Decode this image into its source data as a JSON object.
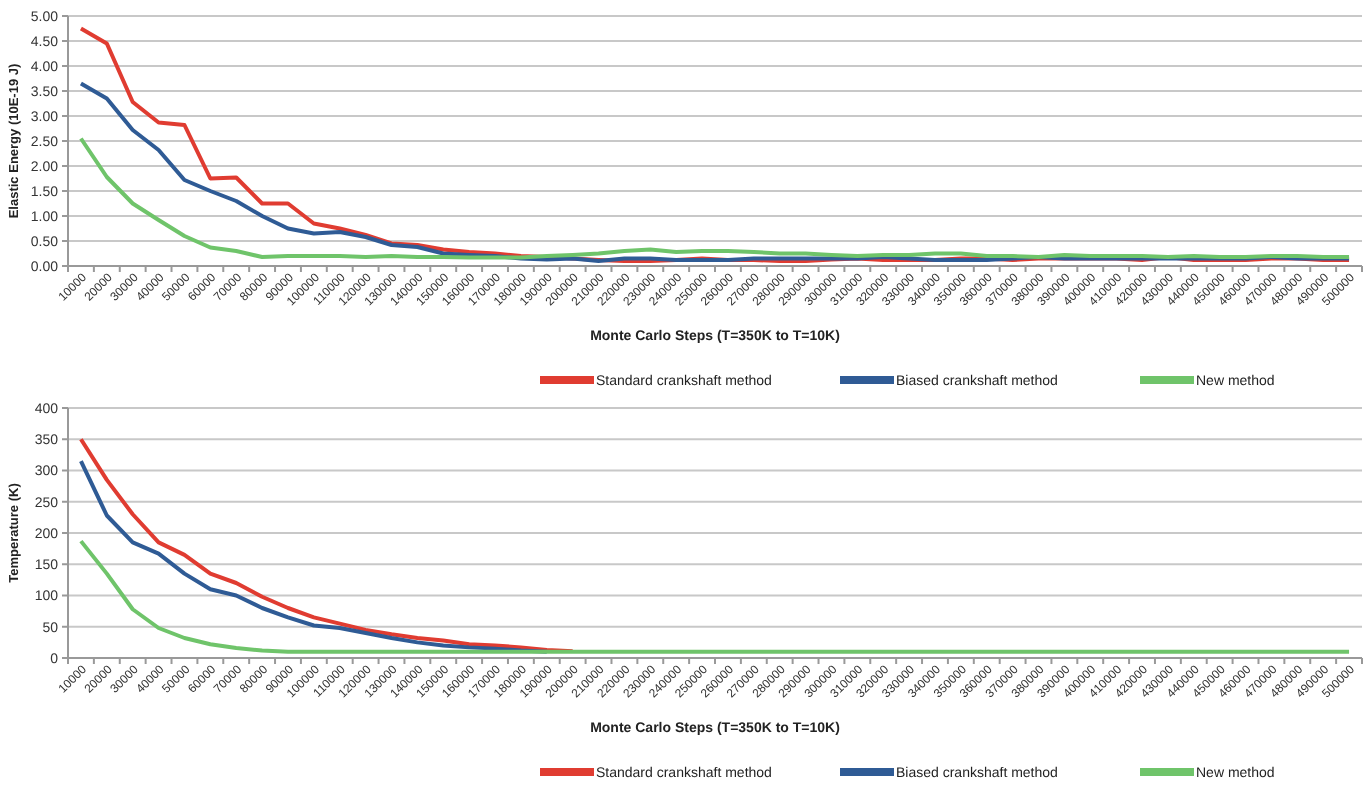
{
  "chart_data": [
    {
      "type": "line",
      "xlabel": "Monte Carlo Steps (T=350K to T=10K)",
      "ylabel": "Elastic Energy (10E-19 J)",
      "categories": [
        "10000",
        "20000",
        "30000",
        "40000",
        "50000",
        "60000",
        "70000",
        "80000",
        "90000",
        "100000",
        "110000",
        "120000",
        "130000",
        "140000",
        "150000",
        "160000",
        "170000",
        "180000",
        "190000",
        "200000",
        "210000",
        "220000",
        "230000",
        "240000",
        "250000",
        "260000",
        "270000",
        "280000",
        "290000",
        "300000",
        "310000",
        "320000",
        "330000",
        "340000",
        "350000",
        "360000",
        "370000",
        "380000",
        "390000",
        "400000",
        "410000",
        "420000",
        "430000",
        "440000",
        "450000",
        "460000",
        "470000",
        "480000",
        "490000",
        "500000"
      ],
      "ylim": [
        0,
        5
      ],
      "yticks": [
        {
          "value": 0,
          "label": "0.00"
        },
        {
          "value": 0.5,
          "label": "0.50"
        },
        {
          "value": 1,
          "label": "1.00"
        },
        {
          "value": 1.5,
          "label": "1.50"
        },
        {
          "value": 2,
          "label": "2.00"
        },
        {
          "value": 2.5,
          "label": "2.50"
        },
        {
          "value": 3,
          "label": "3.00"
        },
        {
          "value": 3.5,
          "label": "3.50"
        },
        {
          "value": 4,
          "label": "4.00"
        },
        {
          "value": 4.5,
          "label": "4.50"
        },
        {
          "value": 5,
          "label": "5.00"
        }
      ],
      "grid": "y",
      "legend": "bottom",
      "marker": "none",
      "line_style": "solid",
      "series": [
        {
          "name": "Standard crankshaft method",
          "color": "#e03c31",
          "values": [
            4.75,
            4.45,
            3.28,
            2.87,
            2.82,
            1.75,
            1.77,
            1.25,
            1.25,
            0.85,
            0.75,
            0.62,
            0.45,
            0.42,
            0.33,
            0.28,
            0.25,
            0.2,
            0.18,
            0.15,
            0.12,
            0.1,
            0.1,
            0.12,
            0.15,
            0.12,
            0.12,
            0.1,
            0.1,
            0.13,
            0.15,
            0.12,
            0.12,
            0.12,
            0.15,
            0.15,
            0.12,
            0.15,
            0.15,
            0.15,
            0.15,
            0.12,
            0.18,
            0.12,
            0.12,
            0.12,
            0.15,
            0.15,
            0.12,
            0.12
          ]
        },
        {
          "name": "Biased crankshaft method",
          "color": "#2f5b95",
          "values": [
            3.65,
            3.35,
            2.72,
            2.32,
            1.72,
            1.5,
            1.3,
            1.0,
            0.75,
            0.65,
            0.68,
            0.58,
            0.42,
            0.38,
            0.25,
            0.22,
            0.2,
            0.15,
            0.13,
            0.15,
            0.1,
            0.15,
            0.15,
            0.12,
            0.12,
            0.12,
            0.15,
            0.15,
            0.15,
            0.15,
            0.15,
            0.18,
            0.15,
            0.12,
            0.12,
            0.12,
            0.15,
            0.18,
            0.15,
            0.15,
            0.15,
            0.15,
            0.15,
            0.15,
            0.15,
            0.15,
            0.18,
            0.15,
            0.15,
            0.15
          ]
        },
        {
          "name": "New method",
          "color": "#6fc46a",
          "values": [
            2.55,
            1.78,
            1.25,
            0.92,
            0.6,
            0.37,
            0.3,
            0.18,
            0.2,
            0.2,
            0.2,
            0.18,
            0.2,
            0.18,
            0.18,
            0.17,
            0.17,
            0.17,
            0.2,
            0.22,
            0.25,
            0.3,
            0.33,
            0.28,
            0.3,
            0.3,
            0.28,
            0.25,
            0.25,
            0.22,
            0.2,
            0.22,
            0.22,
            0.25,
            0.25,
            0.2,
            0.2,
            0.18,
            0.22,
            0.2,
            0.2,
            0.2,
            0.18,
            0.2,
            0.18,
            0.18,
            0.2,
            0.2,
            0.18,
            0.18
          ]
        }
      ]
    },
    {
      "type": "line",
      "xlabel": "Monte Carlo Steps (T=350K to T=10K)",
      "ylabel": "Temperature (K)",
      "categories": [
        "10000",
        "20000",
        "30000",
        "40000",
        "50000",
        "60000",
        "70000",
        "80000",
        "90000",
        "100000",
        "110000",
        "120000",
        "130000",
        "140000",
        "150000",
        "160000",
        "170000",
        "180000",
        "190000",
        "200000",
        "210000",
        "220000",
        "230000",
        "240000",
        "250000",
        "260000",
        "270000",
        "280000",
        "290000",
        "300000",
        "310000",
        "320000",
        "330000",
        "340000",
        "350000",
        "360000",
        "370000",
        "380000",
        "390000",
        "400000",
        "410000",
        "420000",
        "430000",
        "440000",
        "450000",
        "460000",
        "470000",
        "480000",
        "490000",
        "500000"
      ],
      "ylim": [
        0,
        400
      ],
      "yticks": [
        0,
        50,
        100,
        150,
        200,
        250,
        300,
        350,
        400
      ],
      "grid": "y",
      "legend": "bottom",
      "marker": "none",
      "line_style": "solid",
      "series": [
        {
          "name": "Standard crankshaft method",
          "color": "#e03c31",
          "values": [
            350,
            285,
            230,
            185,
            165,
            135,
            120,
            98,
            80,
            65,
            55,
            45,
            38,
            32,
            28,
            22,
            20,
            17,
            13,
            11,
            null,
            null,
            null,
            null,
            null,
            null,
            null,
            null,
            null,
            null,
            null,
            null,
            null,
            null,
            null,
            null,
            null,
            null,
            null,
            null,
            null,
            null,
            null,
            null,
            null,
            null,
            null,
            null,
            null,
            null
          ]
        },
        {
          "name": "Biased crankshaft method",
          "color": "#2f5b95",
          "values": [
            315,
            228,
            185,
            167,
            135,
            110,
            100,
            80,
            65,
            52,
            48,
            40,
            32,
            25,
            20,
            17,
            15,
            12,
            10,
            null,
            null,
            null,
            null,
            null,
            null,
            null,
            null,
            null,
            null,
            null,
            null,
            null,
            null,
            null,
            null,
            null,
            null,
            null,
            null,
            null,
            null,
            null,
            null,
            null,
            null,
            null,
            null,
            null,
            null,
            null
          ]
        },
        {
          "name": "New method",
          "color": "#6fc46a",
          "values": [
            187,
            135,
            78,
            48,
            32,
            22,
            16,
            12,
            10,
            10,
            10,
            10,
            10,
            10,
            10,
            10,
            10,
            10,
            10,
            10,
            10,
            10,
            10,
            10,
            10,
            10,
            10,
            10,
            10,
            10,
            10,
            10,
            10,
            10,
            10,
            10,
            10,
            10,
            10,
            10,
            10,
            10,
            10,
            10,
            10,
            10,
            10,
            10,
            10,
            10
          ]
        }
      ]
    }
  ]
}
